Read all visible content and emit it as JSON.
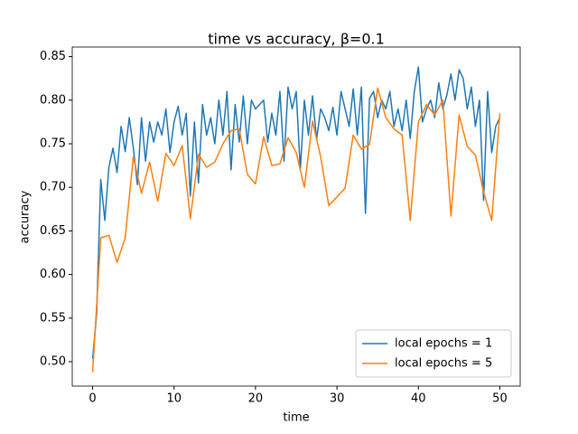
{
  "chart_data": {
    "type": "line",
    "title": "time vs accuracy, β=0.1",
    "x_label": "time",
    "y_label": "accuracy",
    "xlim": [
      -2.5,
      52.5
    ],
    "ylim": [
      0.472,
      0.861
    ],
    "xticks": [
      0,
      10,
      20,
      30,
      40,
      50
    ],
    "yticks": [
      {
        "value": 0.5,
        "label": "0.50"
      },
      0.55,
      {
        "value": 0.6,
        "label": "0.60"
      },
      0.65,
      {
        "value": 0.7,
        "label": "0.70"
      },
      0.75,
      {
        "value": 0.8,
        "label": "0.80"
      },
      0.85
    ],
    "legend": "lower right",
    "series": [
      {
        "name": "local epochs = 1",
        "color": "#1f77b4",
        "x": [
          0,
          0.5,
          1,
          1.5,
          2,
          2.5,
          3,
          3.5,
          4,
          4.5,
          5,
          5.5,
          6,
          6.5,
          7,
          7.5,
          8,
          8.5,
          9,
          9.5,
          10,
          10.5,
          11,
          11.5,
          12,
          12.5,
          13,
          13.5,
          14,
          14.5,
          15,
          15.5,
          16,
          16.5,
          17,
          17.5,
          18,
          18.5,
          19,
          19.5,
          20,
          20.5,
          21,
          21.5,
          22,
          22.5,
          23,
          23.5,
          24,
          24.5,
          25,
          25.5,
          26,
          26.5,
          27,
          27.5,
          28,
          28.5,
          29,
          29.5,
          30,
          30.5,
          31,
          31.5,
          32,
          32.5,
          33,
          33.5,
          34,
          34.5,
          35,
          35.5,
          36,
          36.5,
          37,
          37.5,
          38,
          38.5,
          39,
          39.5,
          40,
          40.5,
          41,
          41.5,
          42,
          42.5,
          43,
          43.5,
          44,
          44.5,
          45,
          45.5,
          46,
          46.5,
          47,
          47.5,
          48,
          48.5,
          49,
          49.5,
          50
        ],
        "values": [
          0.503,
          0.556,
          0.709,
          0.662,
          0.723,
          0.745,
          0.717,
          0.77,
          0.741,
          0.78,
          0.745,
          0.703,
          0.78,
          0.73,
          0.775,
          0.752,
          0.775,
          0.76,
          0.79,
          0.74,
          0.775,
          0.793,
          0.76,
          0.785,
          0.69,
          0.775,
          0.705,
          0.795,
          0.76,
          0.78,
          0.75,
          0.8,
          0.76,
          0.81,
          0.72,
          0.795,
          0.752,
          0.805,
          0.75,
          0.8,
          0.79,
          0.795,
          0.8,
          0.752,
          0.785,
          0.76,
          0.81,
          0.73,
          0.815,
          0.79,
          0.81,
          0.72,
          0.8,
          0.76,
          0.805,
          0.755,
          0.79,
          0.78,
          0.765,
          0.792,
          0.76,
          0.81,
          0.79,
          0.77,
          0.813,
          0.76,
          0.815,
          0.67,
          0.802,
          0.81,
          0.78,
          0.8,
          0.79,
          0.81,
          0.77,
          0.79,
          0.765,
          0.8,
          0.756,
          0.81,
          0.838,
          0.775,
          0.79,
          0.8,
          0.78,
          0.82,
          0.79,
          0.806,
          0.83,
          0.8,
          0.835,
          0.825,
          0.79,
          0.815,
          0.77,
          0.8,
          0.685,
          0.81,
          0.74,
          0.77,
          0.78
        ]
      },
      {
        "name": "local epochs = 5",
        "color": "#ff7f0e",
        "x": [
          0,
          1,
          2,
          3,
          4,
          5,
          6,
          7,
          8,
          9,
          10,
          11,
          12,
          13,
          14,
          15,
          16,
          17,
          18,
          19,
          20,
          21,
          22,
          23,
          24,
          25,
          26,
          27,
          28,
          29,
          30,
          31,
          32,
          33,
          34,
          35,
          36,
          37,
          38,
          39,
          40,
          41,
          42,
          43,
          44,
          45,
          46,
          47,
          48,
          49,
          50
        ],
        "values": [
          0.488,
          0.642,
          0.645,
          0.614,
          0.642,
          0.735,
          0.693,
          0.729,
          0.684,
          0.739,
          0.725,
          0.748,
          0.664,
          0.738,
          0.723,
          0.729,
          0.75,
          0.765,
          0.767,
          0.715,
          0.704,
          0.758,
          0.725,
          0.727,
          0.757,
          0.74,
          0.7,
          0.776,
          0.735,
          0.679,
          0.689,
          0.699,
          0.76,
          0.744,
          0.749,
          0.814,
          0.78,
          0.767,
          0.76,
          0.662,
          0.775,
          0.795,
          0.783,
          0.8,
          0.667,
          0.783,
          0.747,
          0.737,
          0.695,
          0.662,
          0.785
        ]
      }
    ]
  }
}
